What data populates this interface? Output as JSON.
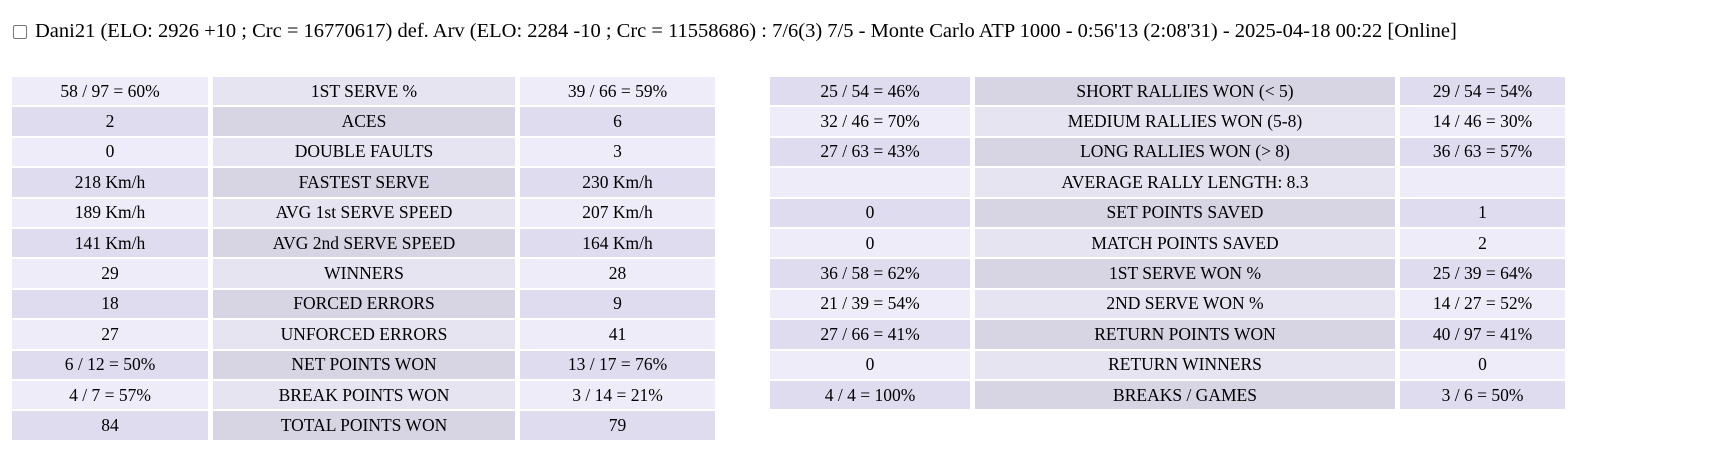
{
  "header": {
    "checkbox_checked": false,
    "match_summary": "Dani21 (ELO: 2926 +10 ; Crc = 16770617) def. Arv (ELO: 2284 -10 ; Crc = 11558686) : 7/6(3) 7/5 - Monte Carlo ATP 1000 - 0:56'13 (2:08'31) - 2025-04-18 00:22 [Online]"
  },
  "colors": {
    "row_light_value": "#eeecf8",
    "row_light_label": "#e6e4f1",
    "row_dark_value": "#dedcee",
    "row_dark_label": "#d7d5e4"
  },
  "tables": {
    "serve_stats": {
      "first_row_shade": "light",
      "rows": [
        {
          "p1": "58 / 97 = 60%",
          "label": "1ST SERVE %",
          "p2": "39 / 66 = 59%"
        },
        {
          "p1": "2",
          "label": "ACES",
          "p2": "6"
        },
        {
          "p1": "0",
          "label": "DOUBLE FAULTS",
          "p2": "3"
        },
        {
          "p1": "218 Km/h",
          "label": "FASTEST SERVE",
          "p2": "230 Km/h"
        },
        {
          "p1": "189 Km/h",
          "label": "AVG 1st SERVE SPEED",
          "p2": "207 Km/h"
        },
        {
          "p1": "141 Km/h",
          "label": "AVG 2nd SERVE SPEED",
          "p2": "164 Km/h"
        },
        {
          "p1": "29",
          "label": "WINNERS",
          "p2": "28"
        },
        {
          "p1": "18",
          "label": "FORCED ERRORS",
          "p2": "9"
        },
        {
          "p1": "27",
          "label": "UNFORCED ERRORS",
          "p2": "41"
        },
        {
          "p1": "6 / 12 = 50%",
          "label": "NET POINTS WON",
          "p2": "13 / 17 = 76%"
        },
        {
          "p1": "4 / 7 = 57%",
          "label": "BREAK POINTS WON",
          "p2": "3 / 14 = 21%"
        },
        {
          "p1": "84",
          "label": "TOTAL POINTS WON",
          "p2": "79"
        }
      ]
    },
    "rally_stats": {
      "first_row_shade": "dark",
      "rows": [
        {
          "p1": "25 / 54 = 46%",
          "label": "SHORT RALLIES WON (< 5)",
          "p2": "29 / 54 = 54%"
        },
        {
          "p1": "32 / 46 = 70%",
          "label": "MEDIUM RALLIES WON (5-8)",
          "p2": "14 / 46 = 30%"
        },
        {
          "p1": "27 / 63 = 43%",
          "label": "LONG RALLIES WON (> 8)",
          "p2": "36 / 63 = 57%"
        },
        {
          "p1": "",
          "label": "AVERAGE RALLY LENGTH: 8.3",
          "p2": ""
        },
        {
          "p1": "0",
          "label": "SET POINTS SAVED",
          "p2": "1"
        },
        {
          "p1": "0",
          "label": "MATCH POINTS SAVED",
          "p2": "2"
        },
        {
          "p1": "36 / 58 = 62%",
          "label": "1ST SERVE WON %",
          "p2": "25 / 39 = 64%"
        },
        {
          "p1": "21 / 39 = 54%",
          "label": "2ND SERVE WON %",
          "p2": "14 / 27 = 52%"
        },
        {
          "p1": "27 / 66 = 41%",
          "label": "RETURN POINTS WON",
          "p2": "40 / 97 = 41%"
        },
        {
          "p1": "0",
          "label": "RETURN WINNERS",
          "p2": "0"
        },
        {
          "p1": "4 / 4 = 100%",
          "label": "BREAKS / GAMES",
          "p2": "3 / 6 = 50%"
        }
      ]
    }
  }
}
